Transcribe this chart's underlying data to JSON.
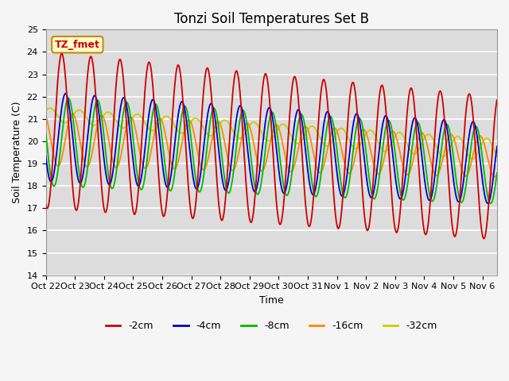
{
  "title": "Tonzi Soil Temperatures Set B",
  "xlabel": "Time",
  "ylabel": "Soil Temperature (C)",
  "ylim": [
    14.0,
    25.0
  ],
  "yticks": [
    14.0,
    15.0,
    16.0,
    17.0,
    18.0,
    19.0,
    20.0,
    21.0,
    22.0,
    23.0,
    24.0,
    25.0
  ],
  "line_colors": [
    "#cc0000",
    "#0000cc",
    "#00bb00",
    "#ff8800",
    "#cccc00"
  ],
  "line_labels": [
    "-2cm",
    "-4cm",
    "-8cm",
    "-16cm",
    "-32cm"
  ],
  "annotation_text": "TZ_fmet",
  "annotation_facecolor": "#ffffcc",
  "annotation_edgecolor": "#cc8800",
  "annotation_textcolor": "#cc0000",
  "plot_bg_color": "#dcdcdc",
  "grid_color": "#ffffff",
  "fig_bg_color": "#f5f5f5",
  "xtick_labels": [
    "Oct 22",
    "Oct 23",
    "Oct 24",
    "Oct 25",
    "Oct 26",
    "Oct 27",
    "Oct 28",
    "Oct 29",
    "Oct 30",
    "Oct 31",
    "Nov 1",
    "Nov 2",
    "Nov 3",
    "Nov 4",
    "Nov 5",
    "Nov 6"
  ],
  "title_fontsize": 12,
  "axis_label_fontsize": 9,
  "tick_fontsize": 8,
  "legend_fontsize": 9,
  "n_days": 15.5,
  "points_per_day": 144
}
